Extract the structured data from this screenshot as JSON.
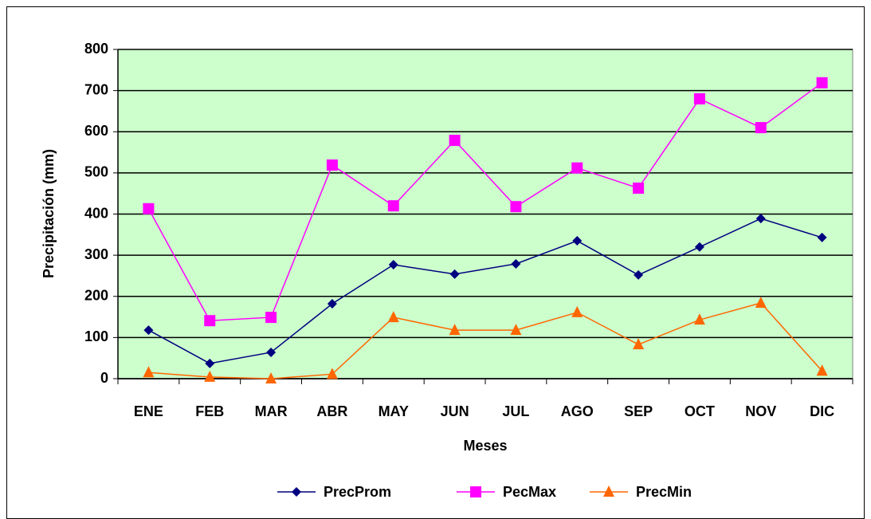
{
  "chart_data": {
    "type": "line",
    "x_label": "Meses",
    "y_label": "Precipitación (mm)",
    "categories": [
      "ENE",
      "FEB",
      "MAR",
      "ABR",
      "MAY",
      "JUN",
      "JUL",
      "AGO",
      "SEP",
      "OCT",
      "NOV",
      "DIC"
    ],
    "series": [
      {
        "name": "PrecProm",
        "color": "#000080",
        "marker": "diamond",
        "values": [
          118,
          37,
          64,
          182,
          277,
          254,
          279,
          335,
          252,
          320,
          389,
          343
        ]
      },
      {
        "name": "PecMax",
        "color": "#ff00ff",
        "marker": "square",
        "values": [
          413,
          141,
          149,
          519,
          420,
          579,
          418,
          512,
          463,
          680,
          610,
          719
        ]
      },
      {
        "name": "PrecMin",
        "color": "#ff6600",
        "marker": "triangle",
        "values": [
          15,
          4,
          0,
          11,
          149,
          118,
          118,
          161,
          83,
          143,
          184,
          19
        ]
      }
    ],
    "ylim": [
      0,
      800
    ],
    "yticks": [
      0,
      100,
      200,
      300,
      400,
      500,
      600,
      700,
      800
    ],
    "grid": true,
    "plot_background": "#ccffcc",
    "legend": "bottom"
  }
}
